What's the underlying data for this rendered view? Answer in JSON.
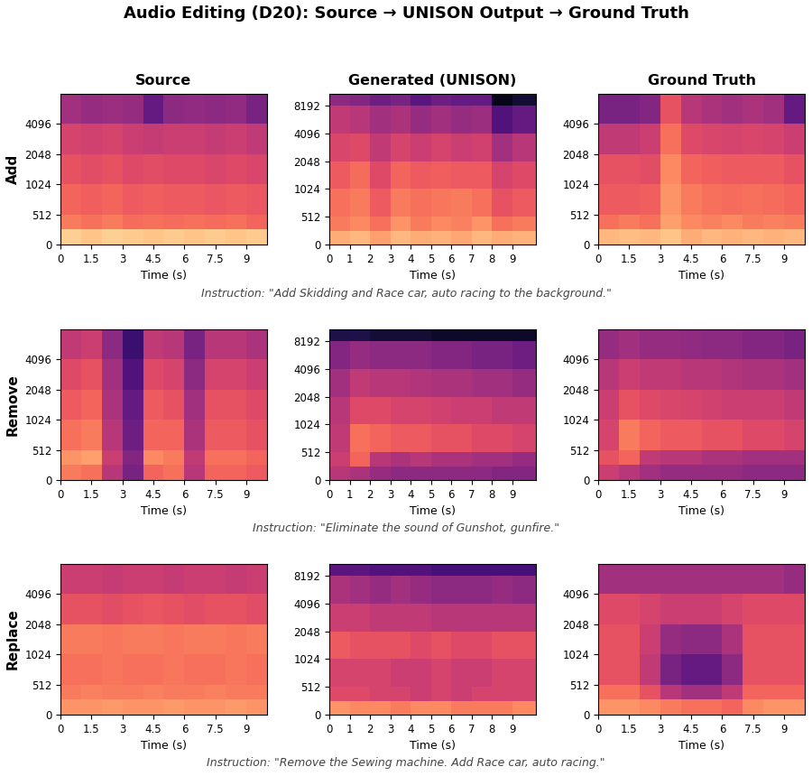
{
  "title": "Audio Editing (D20): Source → UNISON Output → Ground Truth",
  "captions": [
    "Instruction: \"Add Skidding and Race car, auto racing to the background.\"",
    "Instruction: \"Eliminate the sound of Gunshot, gunfire.\"",
    "Instruction: \"Remove the Sewing machine. Add Race car, auto racing.\""
  ],
  "chart_data": [
    {
      "type": "heatmap",
      "title": "Source",
      "ylabel": "Add",
      "xlabel": "Time (s)",
      "log": "y",
      "color": "magma",
      "xlim": [
        0,
        10
      ],
      "ylim": [
        0,
        8192
      ],
      "xticks": [
        0,
        1.5,
        3,
        4.5,
        6,
        7.5,
        9
      ],
      "yticks": [
        0,
        512,
        1024,
        2048,
        4096
      ],
      "color_range": [
        -80,
        0
      ],
      "time_edges": [
        0,
        1,
        2,
        3,
        4,
        5,
        6,
        7,
        8,
        9,
        10
      ],
      "freq_edges": [
        0,
        256,
        512,
        1024,
        2048,
        4096,
        8192
      ],
      "cells": [
        [
          -8,
          -10,
          -8,
          -9,
          -10,
          -9,
          -10,
          -9,
          -10,
          -9
        ],
        [
          -22,
          -24,
          -22,
          -25,
          -24,
          -25,
          -24,
          -25,
          -24,
          -26
        ],
        [
          -26,
          -27,
          -26,
          -28,
          -27,
          -28,
          -28,
          -29,
          -28,
          -29
        ],
        [
          -30,
          -31,
          -30,
          -32,
          -31,
          -32,
          -32,
          -33,
          -32,
          -33
        ],
        [
          -34,
          -35,
          -34,
          -36,
          -37,
          -36,
          -36,
          -37,
          -36,
          -38
        ],
        [
          -44,
          -46,
          -45,
          -46,
          -56,
          -48,
          -47,
          -48,
          -47,
          -52
        ]
      ]
    },
    {
      "type": "heatmap",
      "title": "Generated (UNISON)",
      "xlabel": "Time (s)",
      "log": "y",
      "color": "magma",
      "xlim": [
        0,
        10.16
      ],
      "ylim": [
        0,
        11025
      ],
      "xticks": [
        0,
        1,
        2,
        3,
        4,
        5,
        6,
        7,
        8,
        9
      ],
      "yticks": [
        0,
        512,
        1024,
        2048,
        4096,
        8192
      ],
      "color_range": [
        -80,
        0
      ],
      "time_edges": [
        0,
        1,
        2,
        3,
        4,
        5,
        6,
        7,
        8,
        9,
        10.16
      ],
      "freq_edges": [
        0,
        256,
        512,
        1024,
        2048,
        4096,
        8192,
        11025
      ],
      "cells": [
        [
          -14,
          -12,
          -16,
          -12,
          -14,
          -13,
          -15,
          -12,
          -14,
          -13
        ],
        [
          -22,
          -20,
          -24,
          -18,
          -22,
          -20,
          -21,
          -18,
          -24,
          -22
        ],
        [
          -24,
          -22,
          -28,
          -22,
          -24,
          -23,
          -22,
          -24,
          -30,
          -28
        ],
        [
          -28,
          -25,
          -32,
          -26,
          -28,
          -27,
          -28,
          -28,
          -34,
          -32
        ],
        [
          -33,
          -32,
          -38,
          -34,
          -36,
          -34,
          -36,
          -35,
          -44,
          -40
        ],
        [
          -38,
          -40,
          -44,
          -42,
          -46,
          -44,
          -46,
          -45,
          -60,
          -56
        ],
        [
          -48,
          -50,
          -54,
          -52,
          -58,
          -54,
          -56,
          -56,
          -76,
          -72
        ]
      ]
    },
    {
      "type": "heatmap",
      "title": "Ground Truth",
      "xlabel": "Time (s)",
      "log": "y",
      "color": "magma",
      "xlim": [
        0,
        10
      ],
      "ylim": [
        0,
        8192
      ],
      "xticks": [
        0,
        1.5,
        3,
        4.5,
        6,
        7.5,
        9
      ],
      "yticks": [
        0,
        512,
        1024,
        2048,
        4096
      ],
      "color_range": [
        -80,
        0
      ],
      "time_edges": [
        0,
        1,
        2,
        3,
        4,
        5,
        6,
        7,
        8,
        9,
        10
      ],
      "freq_edges": [
        0,
        256,
        512,
        1024,
        2048,
        4096,
        8192
      ],
      "cells": [
        [
          -12,
          -11,
          -12,
          -10,
          -14,
          -12,
          -13,
          -12,
          -13,
          -12
        ],
        [
          -24,
          -22,
          -24,
          -16,
          -20,
          -21,
          -20,
          -22,
          -21,
          -22
        ],
        [
          -28,
          -28,
          -27,
          -18,
          -22,
          -24,
          -25,
          -24,
          -25,
          -26
        ],
        [
          -30,
          -30,
          -31,
          -20,
          -26,
          -27,
          -28,
          -28,
          -28,
          -30
        ],
        [
          -38,
          -38,
          -36,
          -24,
          -32,
          -33,
          -34,
          -33,
          -34,
          -36
        ],
        [
          -52,
          -52,
          -50,
          -30,
          -40,
          -42,
          -44,
          -42,
          -44,
          -56
        ]
      ]
    },
    {
      "type": "heatmap",
      "ylabel": "Remove",
      "xlabel": "Time (s)",
      "log": "y",
      "color": "magma",
      "xlim": [
        0,
        10
      ],
      "ylim": [
        0,
        8192
      ],
      "xticks": [
        0,
        1.5,
        3,
        4.5,
        6,
        7.5,
        9
      ],
      "yticks": [
        0,
        512,
        1024,
        2048,
        4096
      ],
      "color_range": [
        -80,
        0
      ],
      "time_edges": [
        0,
        1,
        2,
        3,
        4,
        5,
        6,
        7,
        8,
        9,
        10
      ],
      "freq_edges": [
        0,
        256,
        512,
        1024,
        2048,
        4096,
        8192
      ],
      "cells": [
        [
          -22,
          -24,
          -40,
          -52,
          -26,
          -24,
          -40,
          -26,
          -26,
          -28
        ],
        [
          -18,
          -16,
          -36,
          -50,
          -20,
          -22,
          -38,
          -24,
          -24,
          -26
        ],
        [
          -24,
          -22,
          -40,
          -54,
          -26,
          -26,
          -42,
          -28,
          -28,
          -30
        ],
        [
          -28,
          -26,
          -42,
          -56,
          -28,
          -30,
          -44,
          -30,
          -30,
          -32
        ],
        [
          -32,
          -30,
          -44,
          -60,
          -32,
          -34,
          -48,
          -34,
          -34,
          -36
        ],
        [
          -38,
          -36,
          -48,
          -64,
          -38,
          -40,
          -52,
          -40,
          -40,
          -42
        ]
      ]
    },
    {
      "type": "heatmap",
      "xlabel": "Time (s)",
      "log": "y",
      "color": "magma",
      "xlim": [
        0,
        10.16
      ],
      "ylim": [
        0,
        11025
      ],
      "xticks": [
        0,
        1,
        2,
        3,
        4,
        5,
        6,
        7,
        8,
        9
      ],
      "yticks": [
        0,
        512,
        1024,
        2048,
        4096,
        8192
      ],
      "color_range": [
        -80,
        0
      ],
      "time_edges": [
        0,
        1,
        2,
        3,
        4,
        5,
        6,
        7,
        8,
        9,
        10.16
      ],
      "freq_edges": [
        0,
        256,
        512,
        1024,
        2048,
        4096,
        8192,
        11025
      ],
      "cells": [
        [
          -40,
          -42,
          -46,
          -48,
          -48,
          -48,
          -48,
          -48,
          -50,
          -50
        ],
        [
          -36,
          -26,
          -40,
          -42,
          -40,
          -42,
          -42,
          -44,
          -44,
          -46
        ],
        [
          -38,
          -24,
          -26,
          -28,
          -28,
          -30,
          -30,
          -32,
          -32,
          -34
        ],
        [
          -40,
          -32,
          -32,
          -34,
          -34,
          -35,
          -36,
          -36,
          -38,
          -38
        ],
        [
          -44,
          -38,
          -40,
          -40,
          -41,
          -42,
          -42,
          -44,
          -44,
          -46
        ],
        [
          -50,
          -46,
          -48,
          -48,
          -48,
          -50,
          -50,
          -52,
          -52,
          -54
        ],
        [
          -70,
          -70,
          -72,
          -72,
          -72,
          -74,
          -74,
          -74,
          -74,
          -74
        ]
      ]
    },
    {
      "type": "heatmap",
      "xlabel": "Time (s)",
      "log": "y",
      "color": "magma",
      "xlim": [
        0,
        10
      ],
      "ylim": [
        0,
        8192
      ],
      "xticks": [
        0,
        1.5,
        3,
        4.5,
        6,
        7.5,
        9
      ],
      "yticks": [
        0,
        512,
        1024,
        2048,
        4096
      ],
      "color_range": [
        -80,
        0
      ],
      "time_edges": [
        0,
        1,
        2,
        3,
        4,
        5,
        6,
        7,
        8,
        9,
        10
      ],
      "freq_edges": [
        0,
        256,
        512,
        1024,
        2048,
        4096,
        8192
      ],
      "cells": [
        [
          -36,
          -40,
          -44,
          -46,
          -46,
          -46,
          -46,
          -48,
          -48,
          -48
        ],
        [
          -30,
          -26,
          -38,
          -40,
          -40,
          -42,
          -42,
          -44,
          -44,
          -44
        ],
        [
          -34,
          -22,
          -26,
          -28,
          -28,
          -30,
          -30,
          -32,
          -32,
          -34
        ],
        [
          -36,
          -30,
          -32,
          -33,
          -34,
          -35,
          -36,
          -36,
          -36,
          -38
        ],
        [
          -40,
          -36,
          -38,
          -38,
          -40,
          -40,
          -41,
          -42,
          -42,
          -44
        ],
        [
          -46,
          -44,
          -46,
          -46,
          -47,
          -48,
          -48,
          -50,
          -50,
          -52
        ]
      ]
    },
    {
      "type": "heatmap",
      "ylabel": "Replace",
      "xlabel": "Time (s)",
      "log": "y",
      "color": "magma",
      "xlim": [
        0,
        10
      ],
      "ylim": [
        0,
        8192
      ],
      "xticks": [
        0,
        1.5,
        3,
        4.5,
        6,
        7.5,
        9
      ],
      "yticks": [
        0,
        512,
        1024,
        2048,
        4096
      ],
      "color_range": [
        -80,
        0
      ],
      "time_edges": [
        0,
        1,
        2,
        3,
        4,
        5,
        6,
        7,
        8,
        9,
        10
      ],
      "freq_edges": [
        0,
        256,
        512,
        1024,
        2048,
        4096,
        8192
      ],
      "cells": [
        [
          -18,
          -18,
          -17,
          -18,
          -18,
          -17,
          -18,
          -18,
          -17,
          -18
        ],
        [
          -22,
          -21,
          -22,
          -22,
          -21,
          -22,
          -22,
          -21,
          -22,
          -22
        ],
        [
          -24,
          -24,
          -23,
          -24,
          -24,
          -23,
          -24,
          -24,
          -23,
          -24
        ],
        [
          -22,
          -22,
          -23,
          -22,
          -22,
          -23,
          -22,
          -22,
          -23,
          -22
        ],
        [
          -30,
          -30,
          -31,
          -30,
          -29,
          -30,
          -31,
          -30,
          -30,
          -31
        ],
        [
          -36,
          -36,
          -37,
          -36,
          -36,
          -37,
          -36,
          -36,
          -37,
          -36
        ]
      ]
    },
    {
      "type": "heatmap",
      "xlabel": "Time (s)",
      "log": "y",
      "color": "magma",
      "xlim": [
        0,
        10.16
      ],
      "ylim": [
        0,
        11025
      ],
      "xticks": [
        0,
        1,
        2,
        3,
        4,
        5,
        6,
        7,
        8,
        9
      ],
      "yticks": [
        0,
        512,
        1024,
        2048,
        4096,
        8192
      ],
      "color_range": [
        -80,
        0
      ],
      "time_edges": [
        0,
        1,
        2,
        3,
        4,
        5,
        6,
        7,
        8,
        9,
        10.16
      ],
      "freq_edges": [
        0,
        256,
        512,
        1024,
        2048,
        4096,
        8192,
        11025
      ],
      "cells": [
        [
          -18,
          -20,
          -20,
          -22,
          -20,
          -20,
          -22,
          -22,
          -22,
          -20
        ],
        [
          -32,
          -32,
          -34,
          -34,
          -36,
          -34,
          -36,
          -34,
          -34,
          -34
        ],
        [
          -34,
          -34,
          -34,
          -36,
          -36,
          -34,
          -36,
          -36,
          -34,
          -34
        ],
        [
          -28,
          -30,
          -30,
          -30,
          -32,
          -30,
          -32,
          -32,
          -30,
          -30
        ],
        [
          -36,
          -36,
          -38,
          -38,
          -38,
          -40,
          -40,
          -40,
          -40,
          -40
        ],
        [
          -42,
          -44,
          -46,
          -44,
          -46,
          -48,
          -48,
          -48,
          -46,
          -48
        ],
        [
          -58,
          -58,
          -60,
          -60,
          -60,
          -62,
          -62,
          -62,
          -62,
          -62
        ]
      ]
    },
    {
      "type": "heatmap",
      "xlabel": "Time (s)",
      "log": "y",
      "color": "magma",
      "xlim": [
        0,
        10
      ],
      "ylim": [
        0,
        8192
      ],
      "xticks": [
        0,
        1.5,
        3,
        4.5,
        6,
        7.5,
        9
      ],
      "yticks": [
        0,
        512,
        1024,
        2048,
        4096
      ],
      "color_range": [
        -80,
        0
      ],
      "time_edges": [
        0,
        1,
        2,
        3,
        4,
        5,
        6,
        7,
        8,
        9,
        10
      ],
      "freq_edges": [
        0,
        256,
        512,
        1024,
        2048,
        4096,
        8192
      ],
      "cells": [
        [
          -18,
          -18,
          -20,
          -22,
          -24,
          -24,
          -26,
          -20,
          -18,
          -18
        ],
        [
          -24,
          -24,
          -30,
          -40,
          -44,
          -44,
          -38,
          -26,
          -26,
          -26
        ],
        [
          -30,
          -30,
          -38,
          -52,
          -56,
          -56,
          -48,
          -30,
          -30,
          -30
        ],
        [
          -30,
          -30,
          -36,
          -46,
          -48,
          -48,
          -42,
          -30,
          -30,
          -30
        ],
        [
          -32,
          -32,
          -34,
          -36,
          -36,
          -36,
          -34,
          -32,
          -32,
          -32
        ],
        [
          -44,
          -44,
          -44,
          -44,
          -44,
          -44,
          -44,
          -44,
          -44,
          -46
        ]
      ]
    }
  ]
}
